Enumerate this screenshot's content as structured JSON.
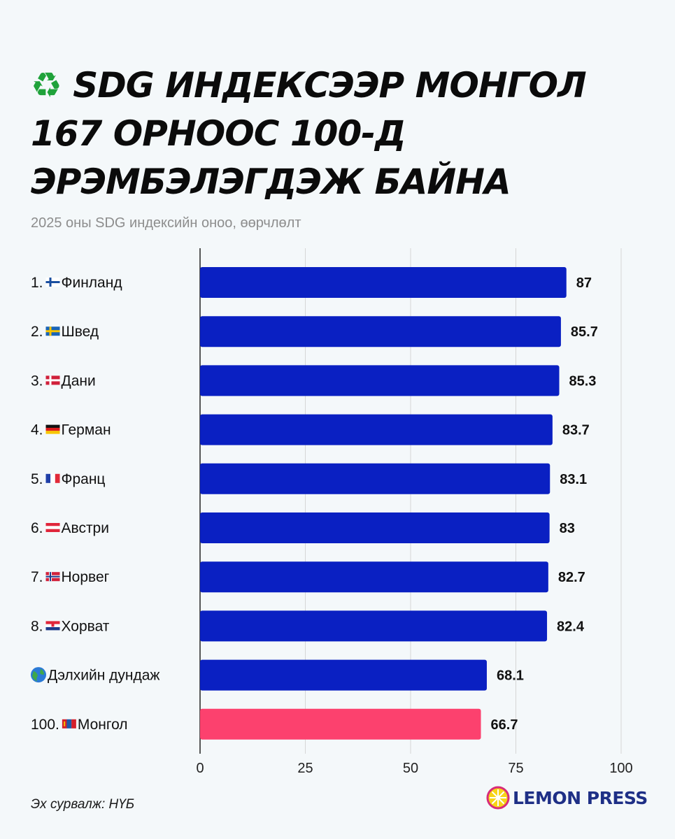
{
  "title": {
    "icon": "recycle-icon",
    "line1": "SDG ИНДЕКСЭЭР МОНГОЛ",
    "line2": "167 ОРНООС 100-Д",
    "line3": "ЭРЭМБЭЛЭГДЭЖ БАЙНА"
  },
  "subtitle": "2025 оны SDG индексийн оноо, өөрчлөлт",
  "source": "Эх сурвалж: НҮБ",
  "brand": {
    "name": "LEMON PRESS",
    "icon": "lemon-icon"
  },
  "colors": {
    "bar": "#0a20c2",
    "highlight": "#fc416e",
    "grid": "#d6d6d6",
    "text": "#111111"
  },
  "chart_data": {
    "type": "bar",
    "orientation": "horizontal",
    "title": "2025 оны SDG индексийн оноо, өөрчлөлт",
    "xlabel": "",
    "ylabel": "",
    "xlim": [
      0,
      100
    ],
    "grid": true,
    "ticks": [
      0,
      25,
      50,
      75,
      100
    ],
    "categories": [
      {
        "rank": "1.",
        "flag": "finland-flag-icon",
        "name": "Финланд"
      },
      {
        "rank": "2.",
        "flag": "sweden-flag-icon",
        "name": "Швед"
      },
      {
        "rank": "3.",
        "flag": "denmark-flag-icon",
        "name": "Дани"
      },
      {
        "rank": "4.",
        "flag": "germany-flag-icon",
        "name": "Герман"
      },
      {
        "rank": "5.",
        "flag": "france-flag-icon",
        "name": "Франц"
      },
      {
        "rank": "6.",
        "flag": "austria-flag-icon",
        "name": "Австри"
      },
      {
        "rank": "7.",
        "flag": "norway-flag-icon",
        "name": "Норвег"
      },
      {
        "rank": "8.",
        "flag": "croatia-flag-icon",
        "name": "Хорват"
      },
      {
        "rank": "",
        "flag": "globe-icon",
        "name": "Дэлхийн дундаж"
      },
      {
        "rank": "100.",
        "flag": "mongolia-flag-icon",
        "name": "Монгол"
      }
    ],
    "values": [
      87,
      85.7,
      85.3,
      83.7,
      83.1,
      83,
      82.7,
      82.4,
      68.1,
      66.7
    ],
    "value_labels": [
      "87",
      "85.7",
      "85.3",
      "83.7",
      "83.1",
      "83",
      "82.7",
      "82.4",
      "68.1",
      "66.7"
    ],
    "highlight_index": 9
  }
}
